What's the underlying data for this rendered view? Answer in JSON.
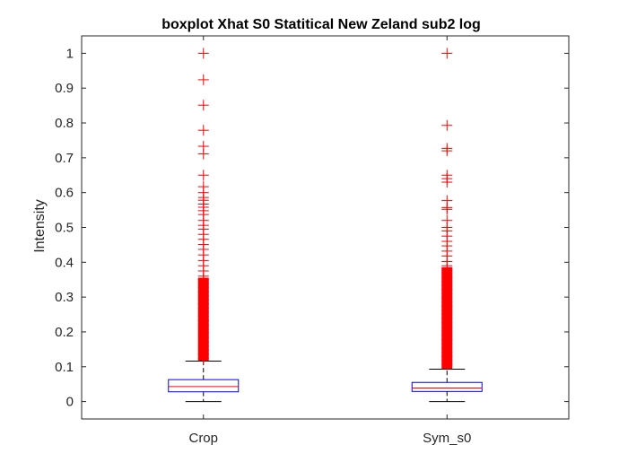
{
  "chart_data": {
    "type": "boxplot",
    "title": "boxplot Xhat S0 Statitical New Zeland sub2 log",
    "xlabel": "",
    "ylabel": "Intensity",
    "categories": [
      "Crop",
      "Sym_s0"
    ],
    "ylim": [
      -0.05,
      1.05
    ],
    "yticks": [
      0,
      0.1,
      0.2,
      0.3,
      0.4,
      0.5,
      0.6,
      0.7,
      0.8,
      0.9,
      1
    ],
    "ytick_labels": [
      "0",
      "0.1",
      "0.2",
      "0.3",
      "0.4",
      "0.5",
      "0.6",
      "0.7",
      "0.8",
      "0.9",
      "1"
    ],
    "grid": false,
    "colors": {
      "box": "#0000ff",
      "median": "#ff0000",
      "outlier": "#ff0000",
      "whisker": "#000000"
    },
    "boxes": [
      {
        "name": "Crop",
        "whisker_low": 0,
        "q1": 0.028,
        "median": 0.043,
        "q3": 0.063,
        "whisker_high": 0.116,
        "outlier_band": [
          0.117,
          0.34
        ],
        "outliers": [
          1.0,
          0.924,
          0.851,
          0.779,
          0.733,
          0.711,
          0.65,
          0.617,
          0.6,
          0.586,
          0.578,
          0.567,
          0.558,
          0.548,
          0.537,
          0.52,
          0.506,
          0.495,
          0.48,
          0.466,
          0.451,
          0.437,
          0.421,
          0.405,
          0.39,
          0.375,
          0.36,
          0.35
        ]
      },
      {
        "name": "Sym_s0",
        "whisker_low": 0,
        "q1": 0.029,
        "median": 0.039,
        "q3": 0.055,
        "whisker_high": 0.093,
        "outlier_band": [
          0.094,
          0.37
        ],
        "outliers": [
          1.0,
          0.793,
          0.727,
          0.72,
          0.65,
          0.64,
          0.63,
          0.577,
          0.557,
          0.552,
          0.52,
          0.5,
          0.49,
          0.475,
          0.46,
          0.447,
          0.432,
          0.418,
          0.402,
          0.39,
          0.38
        ]
      }
    ]
  }
}
